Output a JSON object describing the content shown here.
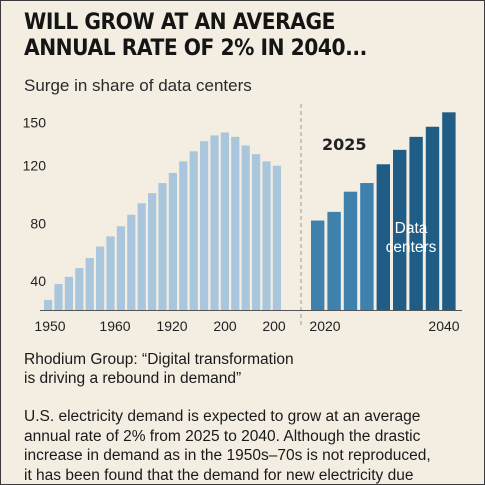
{
  "header": {
    "title_line1": "WILL GROW AT AN AVERAGE",
    "title_line2": "ANNUAL RATE OF 2% IN 2040..."
  },
  "subtitle": "Surge in share of data centers",
  "caption": {
    "line1": "Rhodium Group: “Digital transformation",
    "line2": "is driving a rebound in demand”"
  },
  "body": {
    "line1": "U.S. electricity demand is expected to grow at an average",
    "line2": "annual rate of 2% from 2025 to 2040. Although the drastic",
    "line3": "increase in demand as in the 1950s–70s is not reproduced,",
    "line4": "it has been found that the demand for new electricity due"
  },
  "colors": {
    "historical": "#a9c6dc",
    "forecast_mid": "#3f81ad",
    "forecast_dark": "#1f5c86",
    "divider": "#9a9a9a"
  },
  "chart_data": {
    "type": "bar",
    "ylim": [
      20,
      160
    ],
    "yticks": [
      40,
      80,
      120,
      150
    ],
    "xtick_labels": [
      "1950",
      "1960",
      "1920",
      "200",
      "200",
      "2020",
      "2040"
    ],
    "divider_label": "2025",
    "annotation": "Data centers",
    "historical_values": [
      27,
      38,
      43,
      49,
      56,
      64,
      71,
      78,
      86,
      94,
      101,
      108,
      115,
      123,
      130,
      137,
      141,
      143,
      140,
      134,
      128,
      123,
      120
    ],
    "forecast_values": [
      82,
      88,
      102,
      108,
      121,
      131,
      140,
      147,
      157
    ]
  }
}
